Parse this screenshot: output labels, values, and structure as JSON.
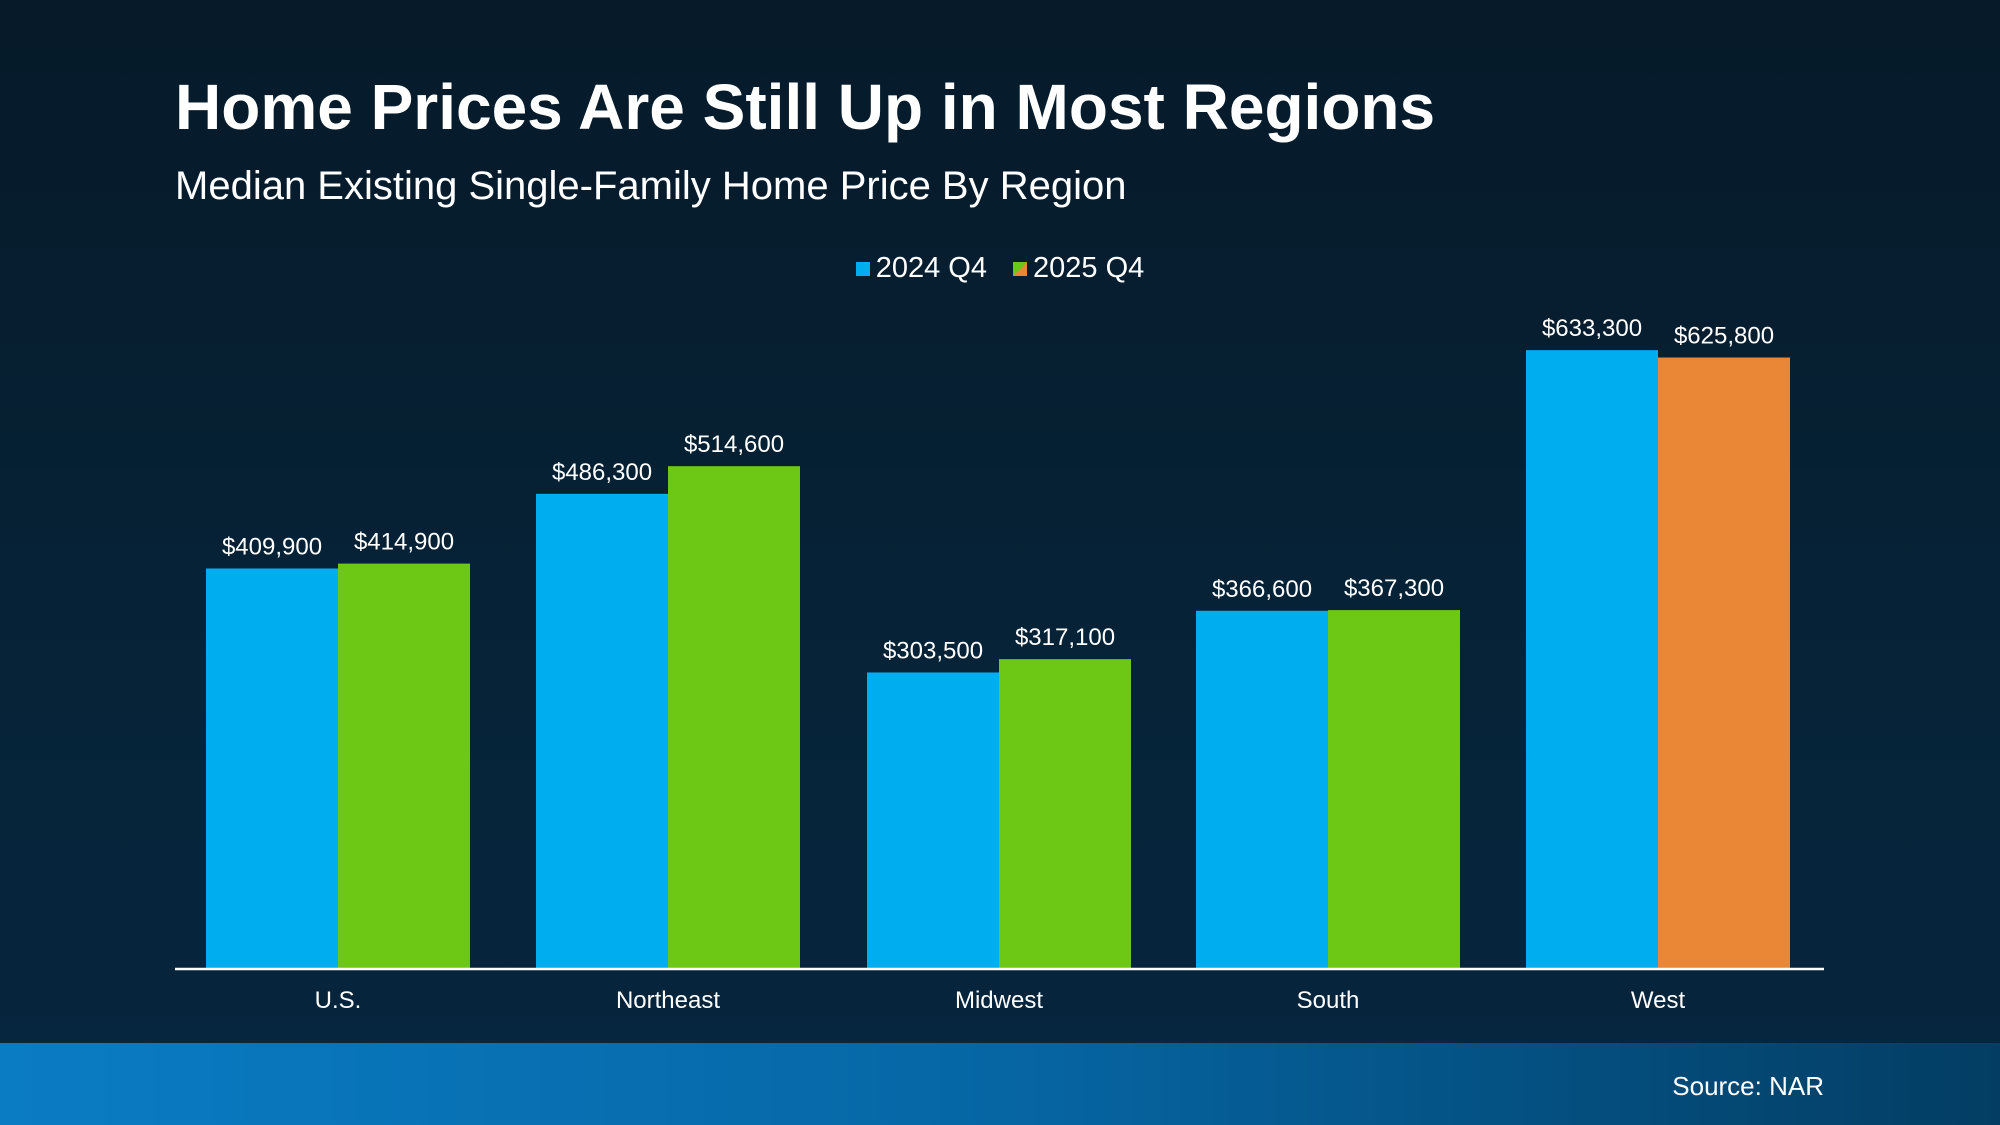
{
  "title": "Home Prices Are Still Up in Most Regions",
  "subtitle": "Median Existing Single-Family Home Price By Region",
  "source": "Source: NAR",
  "colors": {
    "blue": "#00adef",
    "green": "#6cc814",
    "orange": "#e98736"
  },
  "chart_data": {
    "type": "bar",
    "title": "Home Prices Are Still Up in Most Regions",
    "subtitle": "Median Existing Single-Family Home Price By Region",
    "categories": [
      "U.S.",
      "Northeast",
      "Midwest",
      "South",
      "West"
    ],
    "series": [
      {
        "name": "2024 Q4",
        "values": [
          409900,
          486300,
          303500,
          366600,
          633300
        ],
        "labels": [
          "$409,900",
          "$486,300",
          "$303,500",
          "$366,600",
          "$633,300"
        ],
        "colors": [
          "#00adef",
          "#00adef",
          "#00adef",
          "#00adef",
          "#00adef"
        ]
      },
      {
        "name": "2025 Q4",
        "values": [
          414900,
          514600,
          317100,
          367300,
          625800
        ],
        "labels": [
          "$414,900",
          "$514,600",
          "$317,100",
          "$367,300",
          "$625,800"
        ],
        "colors": [
          "#6cc814",
          "#6cc814",
          "#6cc814",
          "#6cc814",
          "#e98736"
        ]
      }
    ],
    "xlabel": "",
    "ylabel": "",
    "ylim": [
      0,
      700000
    ],
    "grid": false,
    "legend": "top-center"
  }
}
